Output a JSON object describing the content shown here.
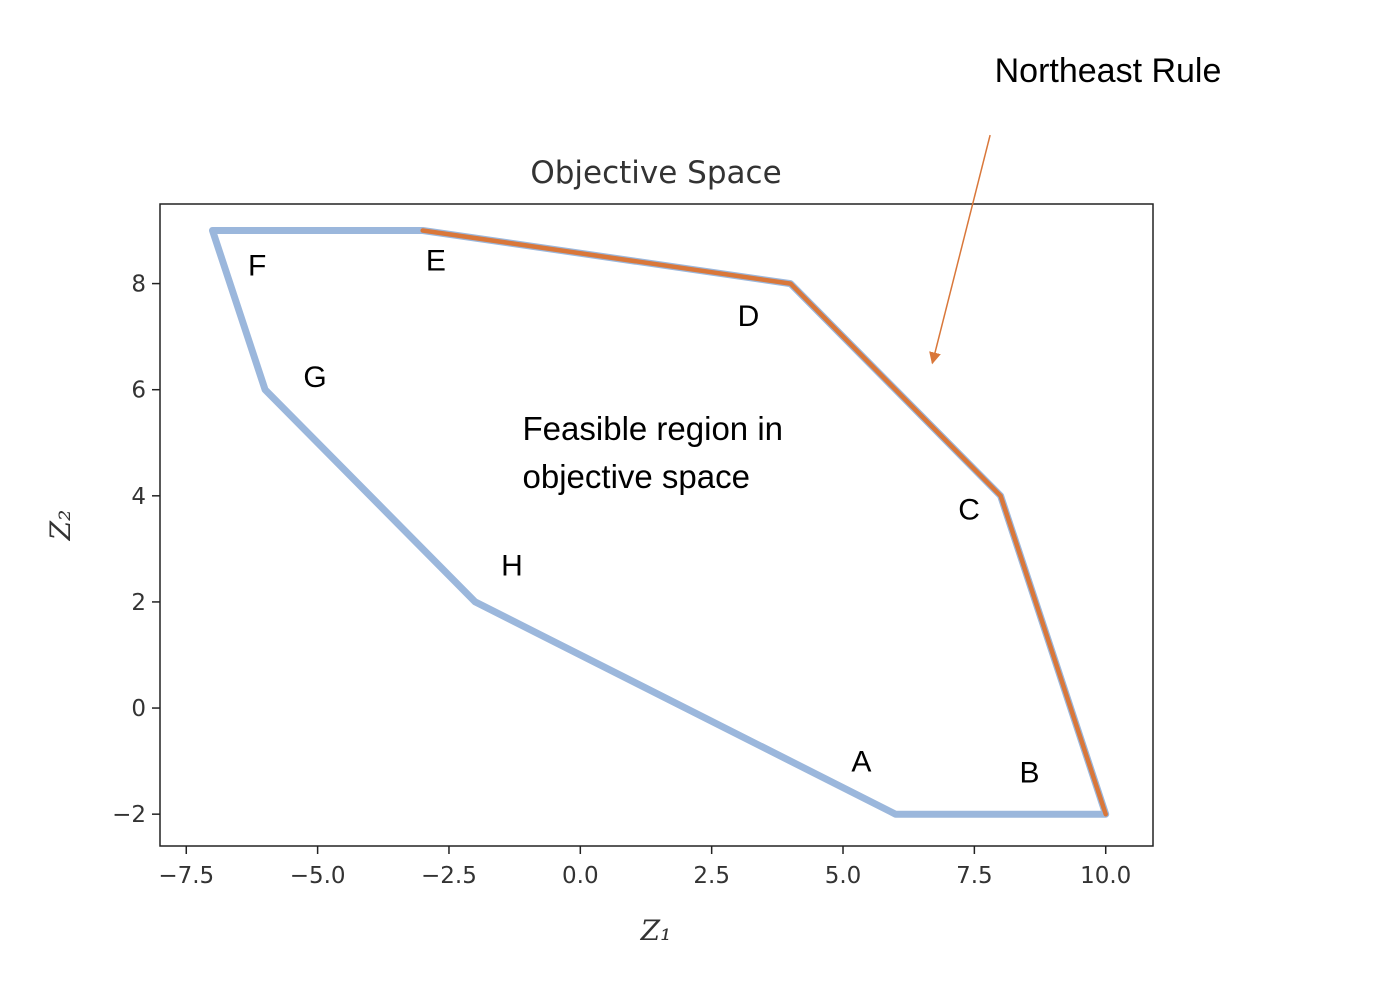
{
  "chart_data": {
    "type": "line",
    "title": "Objective Space",
    "xlabel": "Z₁",
    "ylabel": "Z₂",
    "xlim": [
      -8.0,
      10.9
    ],
    "ylim": [
      -2.6,
      9.5
    ],
    "xticks": [
      -7.5,
      -5.0,
      -2.5,
      0.0,
      2.5,
      5.0,
      7.5,
      10.0
    ],
    "xtick_labels": [
      "−7.5",
      "−5.0",
      "−2.5",
      "0.0",
      "2.5",
      "5.0",
      "7.5",
      "10.0"
    ],
    "yticks": [
      -2,
      0,
      2,
      4,
      6,
      8
    ],
    "ytick_labels": [
      "−2",
      "0",
      "2",
      "4",
      "6",
      "8"
    ],
    "grid": false,
    "series": [
      {
        "role": "feasible-region-boundary",
        "color": "#9bb7dc",
        "x": [
          -7,
          -3,
          4,
          8,
          10,
          6,
          -2,
          -6,
          -7
        ],
        "y": [
          9,
          9,
          8,
          4,
          -2,
          -2,
          2,
          6,
          9
        ]
      },
      {
        "role": "northeast-boundary",
        "color": "#d9773a",
        "x": [
          -3,
          4,
          8,
          10
        ],
        "y": [
          9,
          8,
          4,
          -2
        ]
      }
    ],
    "point_labels": [
      {
        "text": "A",
        "x": 5.35,
        "y": -1.2
      },
      {
        "text": "B",
        "x": 8.55,
        "y": -1.4
      },
      {
        "text": "C",
        "x": 7.4,
        "y": 3.55
      },
      {
        "text": "D",
        "x": 3.2,
        "y": 7.2
      },
      {
        "text": "E",
        "x": -2.75,
        "y": 8.25
      },
      {
        "text": "F",
        "x": -6.15,
        "y": 8.15
      },
      {
        "text": "G",
        "x": -5.05,
        "y": 6.05
      },
      {
        "text": "H",
        "x": -1.3,
        "y": 2.5
      }
    ],
    "annotations": [
      {
        "lines": [
          "Feasible region in",
          "objective space"
        ],
        "x": -1.1,
        "y": 5.05
      }
    ],
    "arrow": {
      "label": "Northeast Rule",
      "color": "#d9773a",
      "from": [
        7.8,
        10.8
      ],
      "to": [
        6.7,
        6.5
      ]
    }
  }
}
